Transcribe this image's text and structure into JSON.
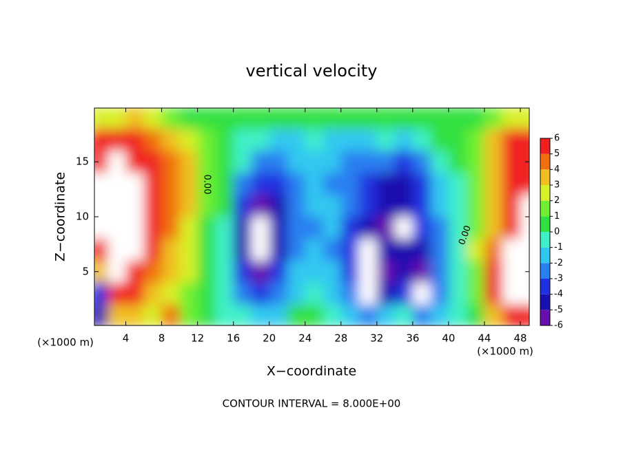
{
  "chart_data": {
    "type": "heatmap",
    "title": "vertical velocity",
    "xlabel": "X−coordinate",
    "ylabel": "Z−coordinate",
    "x_unit": "(×1000 m)",
    "footer": "CONTOUR INTERVAL = 8.000E+00",
    "annotations": [
      "0.00",
      "0.00"
    ],
    "x": [
      1,
      3,
      5,
      7,
      9,
      11,
      13,
      15,
      17,
      19,
      21,
      23,
      25,
      27,
      29,
      31,
      33,
      35,
      37,
      39,
      41,
      43,
      45,
      47,
      49
    ],
    "z": [
      19,
      17,
      15,
      13,
      11,
      9,
      7,
      5,
      3,
      1
    ],
    "values": [
      [
        2,
        2,
        3,
        2,
        1,
        0,
        0,
        0,
        0,
        0,
        0,
        0,
        0,
        0,
        0,
        0,
        0,
        0,
        0,
        0,
        0,
        0,
        1,
        2,
        2
      ],
      [
        5,
        5,
        5,
        4,
        3,
        2,
        1,
        0,
        -1,
        -1,
        -2,
        -2,
        -1,
        -2,
        -2,
        -2,
        -1,
        -2,
        -1,
        0,
        0,
        1,
        3,
        5,
        5
      ],
      [
        6,
        7,
        6,
        5,
        4,
        3,
        1,
        0,
        -1,
        -3,
        -3,
        -2,
        -2,
        -2,
        -3,
        -3,
        -3,
        -4,
        -3,
        -1,
        0,
        1,
        3,
        5,
        5
      ],
      [
        7,
        7,
        7,
        5,
        4,
        3,
        1,
        0,
        -3,
        -4,
        -4,
        -3,
        -2,
        -3,
        -3,
        -4,
        -5,
        -5,
        -4,
        -2,
        -1,
        1,
        3,
        5,
        6
      ],
      [
        7,
        8,
        7,
        6,
        4,
        3,
        1,
        0,
        -4,
        -6,
        -5,
        -3,
        -2,
        -2,
        -3,
        -4,
        -5,
        -5,
        -4,
        -2,
        -1,
        1,
        3,
        6,
        7
      ],
      [
        8,
        8,
        7,
        6,
        4,
        2,
        0,
        -1,
        -5,
        -7,
        -5,
        -3,
        -3,
        -2,
        -4,
        -5,
        -6,
        -7,
        -4,
        -3,
        -1,
        1,
        3,
        6,
        7
      ],
      [
        5,
        8,
        7,
        5,
        3,
        2,
        0,
        -1,
        -5,
        -7,
        -5,
        -3,
        -2,
        -3,
        -4,
        -7,
        -5,
        -5,
        -5,
        -3,
        -1,
        2,
        4,
        7,
        8
      ],
      [
        3,
        7,
        6,
        4,
        3,
        2,
        0,
        -1,
        -4,
        -6,
        -4,
        -2,
        -2,
        -2,
        -4,
        -7,
        -6,
        -5,
        -6,
        -3,
        -1,
        1,
        5,
        8,
        8
      ],
      [
        -4,
        6,
        5,
        3,
        2,
        1,
        0,
        -1,
        -3,
        -4,
        -3,
        -2,
        -1,
        -2,
        -3,
        -7,
        -5,
        -4,
        -7,
        -3,
        -1,
        1,
        5,
        7,
        7
      ],
      [
        -5,
        3,
        3,
        2,
        4,
        1,
        0,
        -1,
        -1,
        -2,
        -2,
        0,
        0,
        -1,
        -2,
        -3,
        -2,
        -1,
        -3,
        -2,
        -1,
        0,
        3,
        6,
        5
      ]
    ],
    "xlim": [
      0.5,
      49
    ],
    "xticks": [
      4,
      8,
      12,
      16,
      20,
      24,
      28,
      32,
      36,
      40,
      44,
      48
    ],
    "ylim": [
      0.1,
      19.9
    ],
    "yticks": [
      5,
      10,
      15
    ],
    "colorbar_ticks": [
      -6,
      -5,
      -4,
      -3,
      -2,
      -1,
      0,
      1,
      2,
      3,
      4,
      5,
      6
    ],
    "colormap": [
      "#6a0dad",
      "#1a0fb0",
      "#2030e0",
      "#2a7ef0",
      "#30c8f0",
      "#40f0c8",
      "#30e040",
      "#70f030",
      "#d8f028",
      "#f0c020",
      "#f07010",
      "#f02020"
    ],
    "out_of_range_color": "#ffffff"
  }
}
